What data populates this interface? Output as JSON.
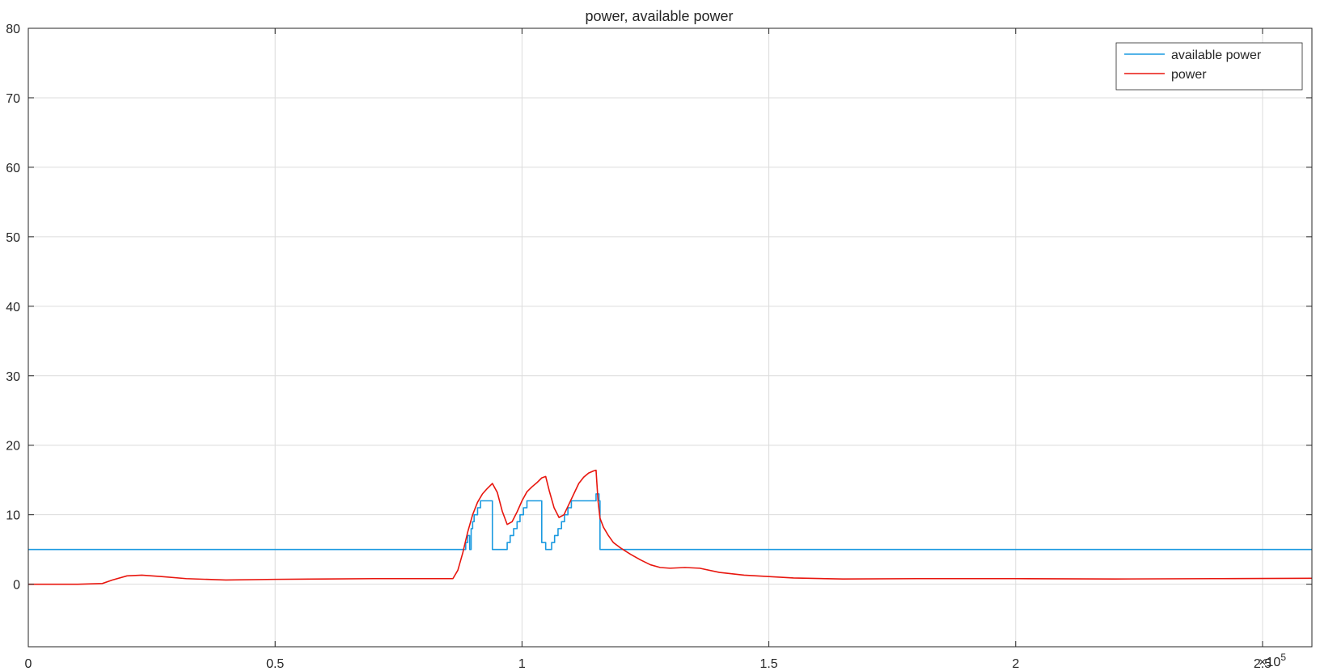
{
  "chart_data": {
    "type": "line",
    "title": "power, available power",
    "xlabel": "",
    "ylabel": "",
    "xlim": [
      0,
      260000
    ],
    "ylim": [
      -9,
      80
    ],
    "x_ticks": [
      0,
      50000,
      100000,
      150000,
      200000,
      250000
    ],
    "x_tick_labels": [
      "0",
      "0.5",
      "1",
      "1.5",
      "2",
      "2.5"
    ],
    "x_exponent_label": "×10",
    "x_exponent_power": "5",
    "y_ticks": [
      0,
      10,
      20,
      30,
      40,
      50,
      60,
      70,
      80
    ],
    "y_tick_labels": [
      "0",
      "10",
      "20",
      "30",
      "40",
      "50",
      "60",
      "70",
      "80"
    ],
    "grid": true,
    "legend": {
      "position": "top-right"
    },
    "series": [
      {
        "name": "available power",
        "color": "#1a9ae0",
        "step": true,
        "x": [
          0,
          88600,
          89000,
          89400,
          89700,
          90000,
          90300,
          91000,
          91600,
          92300,
          93000,
          94000,
          95300,
          97000,
          97600,
          98300,
          99000,
          99600,
          100300,
          101000,
          101700,
          102300,
          103000,
          104000,
          104800,
          106000,
          106600,
          107300,
          108000,
          108600,
          109300,
          110000,
          110700,
          111300,
          112000,
          113000,
          114000,
          115000,
          115600,
          115800,
          116200,
          260000
        ],
        "y": [
          5,
          6,
          7,
          5,
          8,
          9,
          10,
          11,
          12,
          12,
          12,
          5,
          5,
          6,
          7,
          8,
          9,
          10,
          11,
          12,
          12,
          12,
          12,
          6,
          5,
          6,
          7,
          8,
          9,
          10,
          11,
          12,
          12,
          12,
          12,
          12,
          12,
          13,
          12,
          5,
          5,
          5
        ]
      },
      {
        "name": "power",
        "color": "#e8160e",
        "step": false,
        "x": [
          0,
          10000,
          15000,
          17000,
          20000,
          23000,
          27000,
          32000,
          40000,
          50000,
          60000,
          70000,
          80000,
          86000,
          87000,
          88000,
          89000,
          90000,
          91000,
          92000,
          93000,
          94000,
          95000,
          96000,
          97000,
          98000,
          99000,
          100000,
          101000,
          102000,
          103000,
          104000,
          104800,
          105500,
          106500,
          107500,
          108500,
          109500,
          110500,
          111500,
          112500,
          113500,
          114500,
          115000,
          115400,
          115800,
          116500,
          117500,
          118500,
          120000,
          122000,
          124000,
          126000,
          128000,
          130000,
          133000,
          136000,
          140000,
          145000,
          150000,
          155000,
          165000,
          180000,
          200000,
          220000,
          240000,
          260000
        ],
        "y": [
          0,
          0,
          0.1,
          0.6,
          1.2,
          1.3,
          1.1,
          0.8,
          0.6,
          0.7,
          0.75,
          0.8,
          0.8,
          0.8,
          2.0,
          4.5,
          7.5,
          10.0,
          11.8,
          13.0,
          13.8,
          14.5,
          13.2,
          10.5,
          8.6,
          9.0,
          10.4,
          12.0,
          13.3,
          14.0,
          14.6,
          15.3,
          15.5,
          13.5,
          11.0,
          9.6,
          10.0,
          11.5,
          13.0,
          14.5,
          15.4,
          16.0,
          16.3,
          16.4,
          12.0,
          9.5,
          8.2,
          7.0,
          6.0,
          5.2,
          4.3,
          3.5,
          2.8,
          2.4,
          2.3,
          2.4,
          2.3,
          1.7,
          1.3,
          1.1,
          0.9,
          0.75,
          0.8,
          0.8,
          0.75,
          0.8,
          0.85
        ]
      }
    ]
  }
}
